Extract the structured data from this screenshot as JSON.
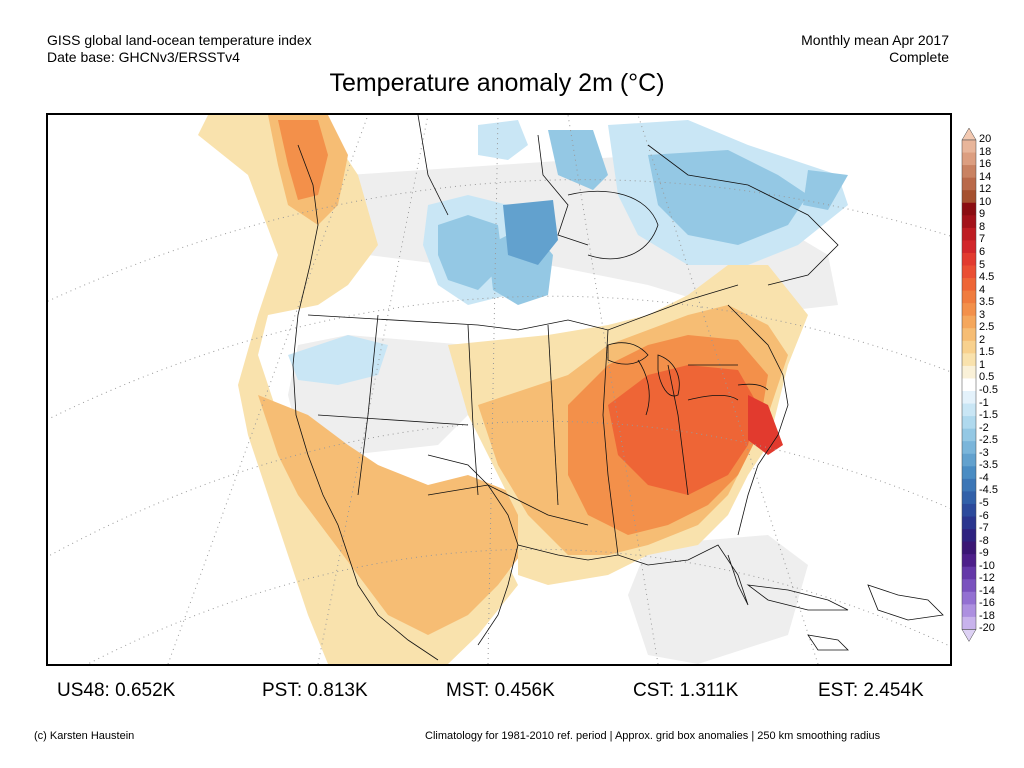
{
  "header": {
    "left_line1": "GISS global land-ocean temperature index",
    "left_line2": "Date base: GHCNv3/ERSSTv4",
    "right_line1": "Monthly mean Apr 2017",
    "right_line2": "Complete"
  },
  "title": "Temperature anomaly 2m (°C)",
  "legend": {
    "labels": [
      "20",
      "18",
      "16",
      "14",
      "12",
      "10",
      "9",
      "8",
      "7",
      "6",
      "5",
      "4.5",
      "4",
      "3.5",
      "3",
      "2.5",
      "2",
      "1.5",
      "1",
      "0.5",
      "-0.5",
      "-1",
      "-1.5",
      "-2",
      "-2.5",
      "-3",
      "-3.5",
      "-4",
      "-4.5",
      "-5",
      "-6",
      "-7",
      "-8",
      "-9",
      "-10",
      "-12",
      "-14",
      "-16",
      "-18",
      "-20"
    ],
    "colors": [
      "#f3c9b1",
      "#e8b59a",
      "#dc9e80",
      "#c98262",
      "#b9694a",
      "#a5502f",
      "#8b0d12",
      "#a3121a",
      "#be1c22",
      "#d2262a",
      "#e23a2e",
      "#ea4e32",
      "#ee6536",
      "#f07c3e",
      "#f3904a",
      "#f5a75c",
      "#f6bd74",
      "#f8d18e",
      "#f9e2ad",
      "#faf1d8",
      "#ffffff",
      "#e4f2fb",
      "#c9e6f5",
      "#afd9ee",
      "#94c8e4",
      "#7ab5da",
      "#62a1ce",
      "#4a8cc3",
      "#3c76b6",
      "#3160a9",
      "#2c4a9c",
      "#2a358e",
      "#2e2280",
      "#3a1674",
      "#4d1f8a",
      "#6438a8",
      "#7a52be",
      "#9370d2",
      "#ad90e0",
      "#c8b3ec",
      "#ddd1f4"
    ]
  },
  "stats": [
    {
      "label": "US48:",
      "value": "0.652K"
    },
    {
      "label": "PST:",
      "value": "0.813K"
    },
    {
      "label": "MST:",
      "value": "0.456K"
    },
    {
      "label": "CST:",
      "value": "1.311K"
    },
    {
      "label": "EST:",
      "value": "2.454K"
    }
  ],
  "footer": {
    "left": "(c) Karsten Haustein",
    "right": "Climatology for 1981-2010 ref. period | Approx. grid box anomalies | 250 km smoothing radius"
  },
  "map": {
    "region": "North America",
    "month": "Apr 2017",
    "anomaly_fill_colors": {
      "warm_strong": "#e23a2e",
      "warm_4": "#ee6536",
      "warm_3": "#f3904a",
      "warm_2": "#f6bd74",
      "warm_1": "#f9e2ad",
      "neutral": "#efefef",
      "cool_1": "#c9e6f5",
      "cool_2": "#94c8e4",
      "cool_3": "#62a1ce",
      "cool_4": "#4a8cc3"
    }
  }
}
